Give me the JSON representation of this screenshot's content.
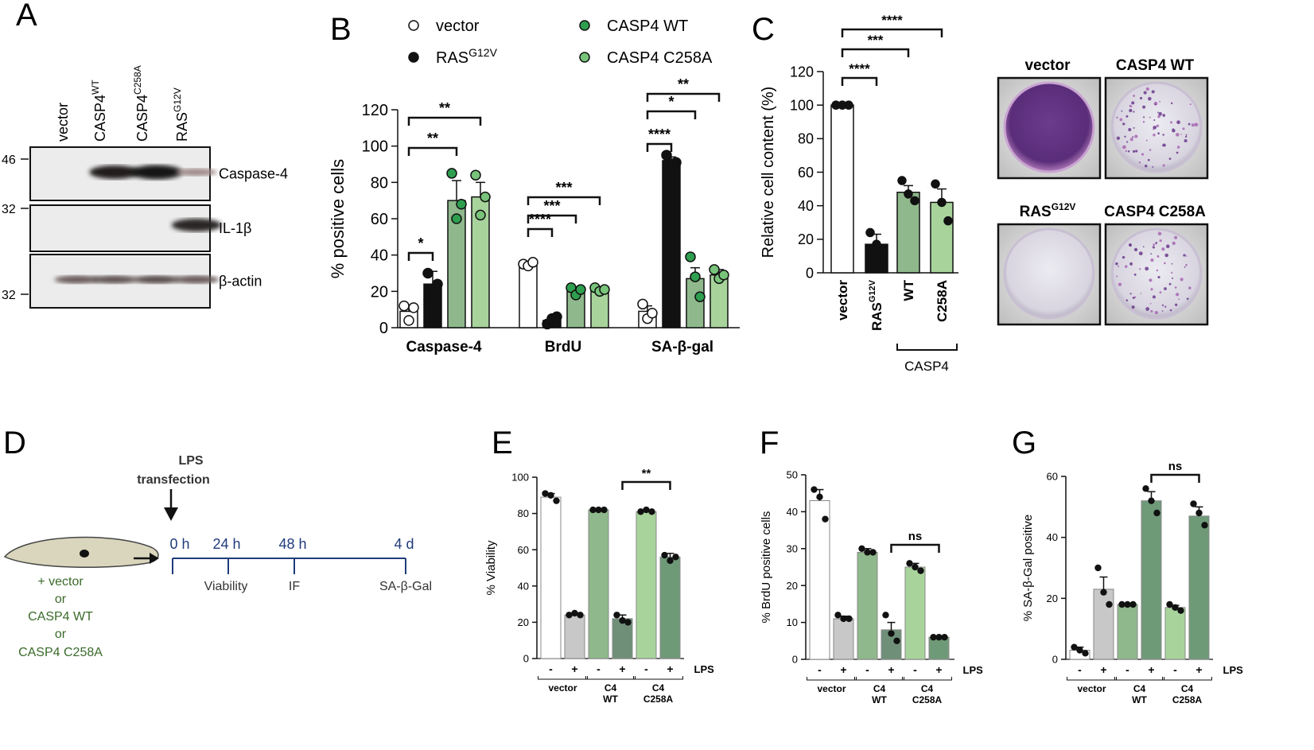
{
  "panel_letters": {
    "a": "A",
    "b": "B",
    "c": "C",
    "d": "D",
    "e": "E",
    "f": "F",
    "g": "G"
  },
  "colors": {
    "vector": "#ffffff",
    "ras": "#111111",
    "casp4_wt": "#8fb98c",
    "casp4_c258a": "#a8d49c",
    "wt_dot": "#2e9e4f",
    "c258a_dot": "#78c47a",
    "grey_bar": "#c8c8c8",
    "dark_green_bar": "#6f9a78",
    "dish_purple": "#5a2d7a",
    "dish_pink": "#c888c9",
    "schematic_blue": "#1f3b7a",
    "schematic_green": "#3a6a2a"
  },
  "panel_a": {
    "lanes": [
      "vector",
      "CASP4",
      "CASP4",
      "RAS"
    ],
    "lane_sup": [
      "",
      "WT",
      "C258A",
      "G12V"
    ],
    "mw_markers": [
      "46",
      "32",
      "32"
    ],
    "blots": [
      {
        "label": "Caspase-4",
        "band_intensity": [
          0.0,
          0.95,
          1.0,
          0.25
        ]
      },
      {
        "label": "IL-1β",
        "band_intensity": [
          0.0,
          0.0,
          0.0,
          0.9
        ]
      },
      {
        "label": "β-actin",
        "band_intensity": [
          0.55,
          0.6,
          0.65,
          0.55
        ]
      }
    ]
  },
  "panel_b_legend": [
    {
      "label": "vector",
      "sup": "",
      "color": "#ffffff"
    },
    {
      "label": "RAS",
      "sup": "G12V",
      "color": "#111111"
    },
    {
      "label": "CASP4 WT",
      "sup": "",
      "color": "#2e9e4f"
    },
    {
      "label": "CASP4 C258A",
      "sup": "",
      "color": "#78c47a"
    }
  ],
  "panel_c_dishes": [
    {
      "label": "vector",
      "sup": "",
      "density": 1.0
    },
    {
      "label": "CASP4 WT",
      "sup": "",
      "density": 0.35
    },
    {
      "label": "RAS",
      "sup": "G12V",
      "density": 0.0
    },
    {
      "label": "CASP4 C258A",
      "sup": "",
      "density": 0.3
    }
  ],
  "panel_d": {
    "lps_label_1": "LPS",
    "lps_label_2": "transfection",
    "conditions": [
      "+ vector",
      "or",
      "CASP4 WT",
      "or",
      "CASP4 C258A"
    ],
    "timepoints": [
      "0 h",
      "24 h",
      "48 h",
      "4 d"
    ],
    "assays": [
      "Viability",
      "IF",
      "SA-β-Gal"
    ]
  },
  "chart_data": [
    {
      "id": "B",
      "type": "bar",
      "categories": [
        "Caspase-4",
        "BrdU",
        "SA-β-gal"
      ],
      "ylabel": "% positive cells",
      "ylim": [
        0,
        120
      ],
      "yticks": [
        "0",
        "20",
        "40",
        "60",
        "80",
        "100",
        "120"
      ],
      "series": [
        {
          "name": "vector",
          "values": [
            9,
            35,
            9
          ],
          "err": [
            3,
            1,
            3
          ],
          "points": [
            [
              12,
              4,
              11
            ],
            [
              35,
              34,
              36
            ],
            [
              13,
              5,
              8
            ]
          ]
        },
        {
          "name": "RAS G12V",
          "values": [
            24,
            4,
            92
          ],
          "err": [
            7,
            1,
            2
          ],
          "points": [
            [
              30,
              18,
              24
            ],
            [
              2,
              5,
              6
            ],
            [
              95,
              90,
              91
            ]
          ]
        },
        {
          "name": "CASP4 WT",
          "values": [
            70,
            20,
            27
          ],
          "err": [
            11,
            2,
            6
          ],
          "points": [
            [
              85,
              60,
              68
            ],
            [
              22,
              18,
              21
            ],
            [
              39,
              28,
              17
            ]
          ]
        },
        {
          "name": "CASP4 C258A",
          "values": [
            72,
            21,
            29
          ],
          "err": [
            8,
            1,
            3
          ],
          "points": [
            [
              84,
              62,
              72
            ],
            [
              22,
              20,
              21
            ],
            [
              32,
              27,
              29
            ]
          ]
        }
      ],
      "significance": [
        {
          "group": 0,
          "from": 0,
          "to": 1,
          "label": "*"
        },
        {
          "group": 0,
          "from": 0,
          "to": 2,
          "label": "**"
        },
        {
          "group": 0,
          "from": 0,
          "to": 3,
          "label": "**"
        },
        {
          "group": 1,
          "from": 0,
          "to": 1,
          "label": "****"
        },
        {
          "group": 1,
          "from": 0,
          "to": 2,
          "label": "***"
        },
        {
          "group": 1,
          "from": 0,
          "to": 3,
          "label": "***"
        },
        {
          "group": 2,
          "from": 0,
          "to": 1,
          "label": "****"
        },
        {
          "group": 2,
          "from": 0,
          "to": 2,
          "label": "*"
        },
        {
          "group": 2,
          "from": 0,
          "to": 3,
          "label": "**"
        }
      ]
    },
    {
      "id": "C",
      "type": "bar",
      "categories": [
        "vector",
        "RAS",
        "WT",
        "C258A"
      ],
      "category_sup": [
        "",
        "G12V",
        "",
        ""
      ],
      "group_label": "CASP4",
      "ylabel": "Relative cell content (%)",
      "ylim": [
        0,
        120
      ],
      "yticks": [
        "0",
        "20",
        "40",
        "60",
        "80",
        "100",
        "120"
      ],
      "values": [
        100,
        17,
        48,
        42
      ],
      "err": [
        0.5,
        6,
        4,
        8
      ],
      "points": [
        [
          100,
          100,
          100
        ],
        [
          24,
          17,
          9
        ],
        [
          55,
          47,
          43
        ],
        [
          53,
          42,
          31
        ]
      ],
      "significance": [
        {
          "from": 0,
          "to": 1,
          "label": "****"
        },
        {
          "from": 0,
          "to": 2,
          "label": "***"
        },
        {
          "from": 0,
          "to": 3,
          "label": "****"
        }
      ]
    },
    {
      "id": "E",
      "type": "bar",
      "ylabel": "% Viability",
      "ylim": [
        0,
        100
      ],
      "yticks": [
        "0",
        "20",
        "40",
        "60",
        "80",
        "100"
      ],
      "lps_signs": [
        "-",
        "+",
        "-",
        "+",
        "-",
        "+"
      ],
      "lps_label": "LPS",
      "groups": [
        [
          "vector"
        ],
        [
          "C4",
          "WT"
        ],
        [
          "C4",
          "C258A"
        ]
      ],
      "values": [
        89,
        24,
        82,
        22,
        81,
        56
      ],
      "err": [
        2,
        0.5,
        0.5,
        2,
        0.5,
        2
      ],
      "points": [
        [
          91,
          90,
          87
        ],
        [
          24,
          25,
          24
        ],
        [
          82,
          82,
          82
        ],
        [
          24,
          21,
          20
        ],
        [
          81,
          82,
          81
        ],
        [
          57,
          54,
          56
        ]
      ],
      "significance": [
        {
          "from": 3,
          "to": 5,
          "label": "**"
        }
      ]
    },
    {
      "id": "F",
      "type": "bar",
      "ylabel": "% BrdU positive cells",
      "ylim": [
        0,
        50
      ],
      "yticks": [
        "0",
        "10",
        "20",
        "30",
        "40",
        "50"
      ],
      "lps_signs": [
        "-",
        "+",
        "-",
        "+",
        "-",
        "+"
      ],
      "lps_label": "LPS",
      "groups": [
        [
          "vector"
        ],
        [
          "C4",
          "WT"
        ],
        [
          "C4",
          "C258A"
        ]
      ],
      "values": [
        43,
        11,
        29,
        8,
        25,
        6
      ],
      "err": [
        3,
        0.7,
        1,
        2,
        1,
        0.3
      ],
      "points": [
        [
          46,
          44,
          38
        ],
        [
          12,
          11,
          11
        ],
        [
          30,
          29,
          29
        ],
        [
          12,
          7,
          5
        ],
        [
          26,
          25,
          24
        ],
        [
          6,
          6,
          6
        ]
      ],
      "significance": [
        {
          "from": 3,
          "to": 5,
          "label": "ns"
        }
      ]
    },
    {
      "id": "G",
      "type": "bar",
      "ylabel": "% SA-β-Gal positive",
      "ylim": [
        0,
        60
      ],
      "yticks": [
        "0",
        "20",
        "40",
        "60"
      ],
      "lps_signs": [
        "-",
        "+",
        "-",
        "+",
        "-",
        "+"
      ],
      "lps_label": "LPS",
      "groups": [
        [
          "vector"
        ],
        [
          "C4",
          "WT"
        ],
        [
          "C4",
          "C258A"
        ]
      ],
      "values": [
        3,
        23,
        18,
        52,
        17,
        47
      ],
      "err": [
        1,
        4,
        0.3,
        3,
        0.7,
        3
      ],
      "points": [
        [
          4,
          3,
          2
        ],
        [
          30,
          22,
          18
        ],
        [
          18,
          18,
          18
        ],
        [
          56,
          52,
          48
        ],
        [
          18,
          17,
          16
        ],
        [
          51,
          48,
          44
        ]
      ],
      "significance": [
        {
          "from": 3,
          "to": 5,
          "label": "ns"
        }
      ]
    }
  ]
}
